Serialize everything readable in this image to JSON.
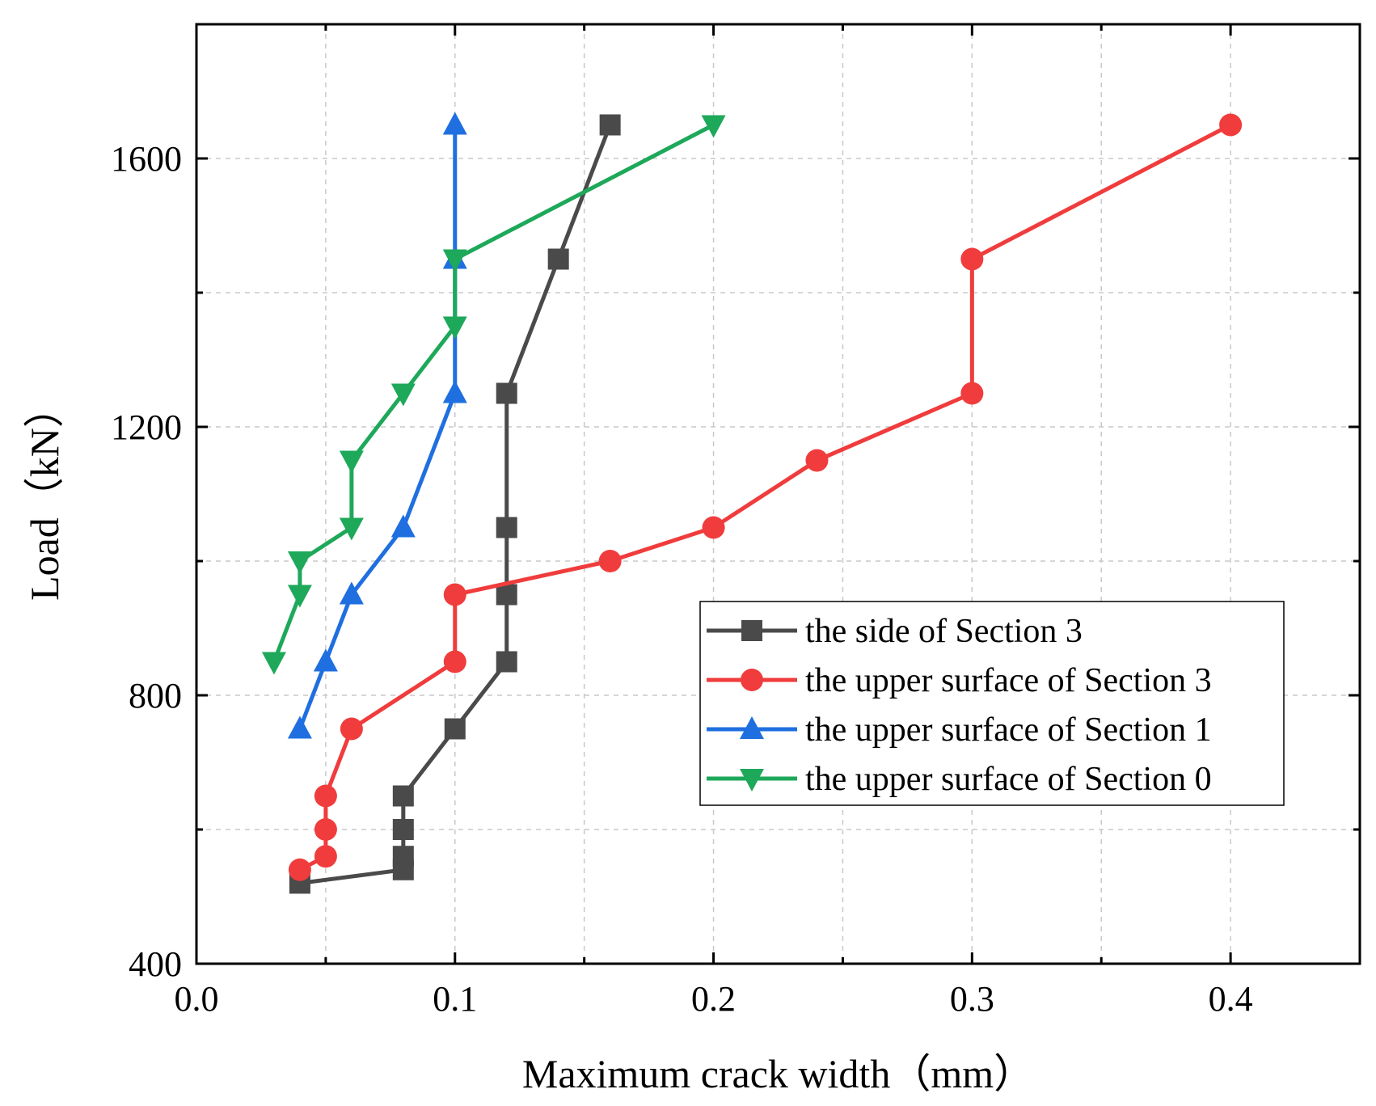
{
  "chart_data": {
    "type": "line",
    "xlabel": "Maximum crack width（mm）",
    "ylabel": "Load（kN）",
    "xlim": [
      0.0,
      0.45
    ],
    "ylim": [
      400,
      1800
    ],
    "x_ticks": [
      0.0,
      0.1,
      0.2,
      0.3,
      0.4
    ],
    "x_tick_labels": [
      "0.0",
      "0.1",
      "0.2",
      "0.3",
      "0.4"
    ],
    "y_ticks": [
      400,
      800,
      1200,
      1600
    ],
    "y_tick_labels": [
      "400",
      "800",
      "1200",
      "1600"
    ],
    "grid": true,
    "legend_position": "center-right",
    "series": [
      {
        "name": "the side of Section 3",
        "color": "#4a4a4a",
        "marker": "square",
        "x": [
          0.04,
          0.08,
          0.08,
          0.08,
          0.08,
          0.1,
          0.12,
          0.12,
          0.12,
          0.12,
          0.14,
          0.16
        ],
        "y": [
          520,
          540,
          560,
          600,
          650,
          750,
          850,
          950,
          1050,
          1250,
          1450,
          1650
        ]
      },
      {
        "name": "the upper surface of Section 3",
        "color": "#f03c3c",
        "marker": "circle",
        "x": [
          0.04,
          0.05,
          0.05,
          0.05,
          0.06,
          0.1,
          0.1,
          0.16,
          0.2,
          0.24,
          0.3,
          0.3,
          0.4
        ],
        "y": [
          540,
          560,
          600,
          650,
          750,
          850,
          950,
          1000,
          1050,
          1150,
          1250,
          1450,
          1650
        ]
      },
      {
        "name": "the upper surface of Section 1",
        "color": "#1f6fe0",
        "marker": "triangle-up",
        "x": [
          0.04,
          0.05,
          0.06,
          0.08,
          0.1,
          0.1,
          0.1
        ],
        "y": [
          750,
          850,
          950,
          1050,
          1250,
          1450,
          1650
        ]
      },
      {
        "name": "the upper surface of Section 0",
        "color": "#1ea85a",
        "marker": "triangle-down",
        "x": [
          0.03,
          0.04,
          0.04,
          0.06,
          0.06,
          0.08,
          0.1,
          0.1,
          0.2
        ],
        "y": [
          850,
          950,
          1000,
          1050,
          1150,
          1250,
          1350,
          1450,
          1650
        ]
      }
    ]
  }
}
